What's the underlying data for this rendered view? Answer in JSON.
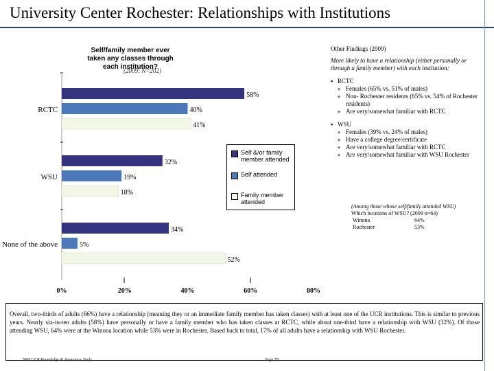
{
  "slide": {
    "title": "University Center Rochester:  Relationships with Institutions"
  },
  "chart_data": {
    "type": "bar",
    "orientation": "horizontal",
    "title": "Self/family member ever taken any classes through each institution?",
    "subtitle": "(2009: N=202)",
    "categories": [
      "RCTC",
      "WSU",
      "None of the above"
    ],
    "series": [
      {
        "name": "Self &/or family member attended",
        "values": [
          58,
          32,
          34
        ],
        "labels": [
          "58%",
          "32%",
          "34%"
        ],
        "color": "#33337f"
      },
      {
        "name": "Self attended",
        "values": [
          40,
          19,
          5
        ],
        "labels": [
          "40%",
          "19%",
          "5%"
        ],
        "color": "#4a78b8"
      },
      {
        "name": "Family member attended",
        "values": [
          41,
          18,
          52
        ],
        "labels": [
          "41%",
          "18%",
          "52%"
        ],
        "color": "#f2f7e6"
      }
    ],
    "xlim": [
      0,
      80
    ],
    "xticks": [
      "0%",
      "20%",
      "40%",
      "60%",
      "80%"
    ],
    "legend_position": "right"
  },
  "findings": {
    "heading": "Other Findings (2009)",
    "intro": "More likely to have a relationship (either personally or through a family member) with each institution:",
    "groups": [
      {
        "label": "RCTC",
        "items": [
          "Females (65% vs. 51% of males)",
          "Non- Rochester residents (65% vs. 54% of Rochester residents)",
          "Are very/somewhat familiar with RCTC"
        ]
      },
      {
        "label": "WSU",
        "items": [
          "Females (39% vs. 24% of males)",
          "Have a college degree/certificate",
          "Are very/somewhat familiar with RCTC",
          "Are very/somewhat familiar with WSU Rochester"
        ]
      }
    ],
    "sub_marker": "»",
    "bullet": "▪"
  },
  "note": {
    "head": "(Among those whose self/family attended WSU)",
    "line2": "Which locations of WSU? (2009 n=64)",
    "rows": [
      {
        "label": "Winona",
        "value": "64%"
      },
      {
        "label": "Rochester",
        "value": "53%"
      }
    ]
  },
  "summary": "Overall, two-thirds of adults (66%) have a relationship (meaning they or an immediate family member has taken classes) with at least one of the UCR institutions. This is similar to previous years. Nearly six-in-ten adults (58%) have personally or have a family member who has taken classes at RCTC, while about one-third have a relationship with WSU (32%). Of those attending WSU, 64% were at the Winona location while 53% were in Rochester. Based back to total, 17% of all adults have a relationship with WSU Rochester.",
  "footer": {
    "study": "2009 UCR Knowledge & Awareness Study",
    "page": "Page 78"
  }
}
